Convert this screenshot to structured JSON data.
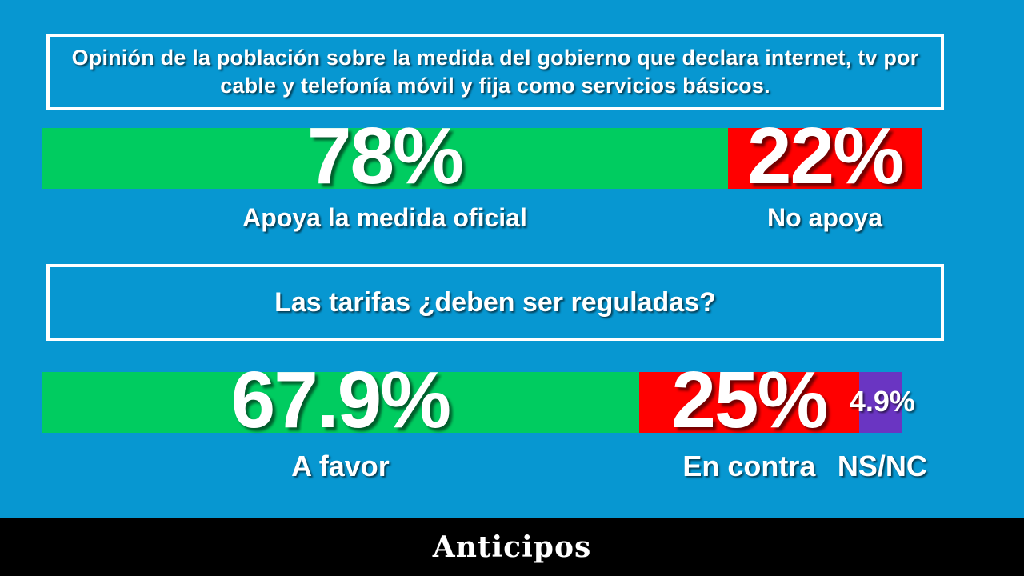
{
  "colors": {
    "background": "#0797d1",
    "support": "#00cc60",
    "against": "#ff0000",
    "nsnc": "#6a35c2"
  },
  "chart_data": [
    {
      "type": "bar",
      "title": "Opinión de la población sobre la medida del gobierno que declara internet, tv por cable y telefonía móvil y fija como servicios básicos.",
      "series": [
        {
          "key": "apoya",
          "label": "Apoya la medida oficial",
          "value": 78,
          "display": "78%",
          "color": "#00cc60"
        },
        {
          "key": "no_apoya",
          "label": "No apoya",
          "value": 22,
          "display": "22%",
          "color": "#ff0000"
        }
      ]
    },
    {
      "type": "bar",
      "title": "Las tarifas ¿deben ser reguladas?",
      "series": [
        {
          "key": "a_favor",
          "label": "A favor",
          "value": 67.9,
          "display": "67.9%",
          "color": "#00cc60"
        },
        {
          "key": "en_contra",
          "label": "En contra",
          "value": 25,
          "display": "25%",
          "color": "#ff0000"
        },
        {
          "key": "ns_nc",
          "label": "NS/NC",
          "value": 4.9,
          "display": "4.9%",
          "color": "#6a35c2"
        }
      ]
    }
  ],
  "footer": {
    "brand": "Anticipos"
  }
}
